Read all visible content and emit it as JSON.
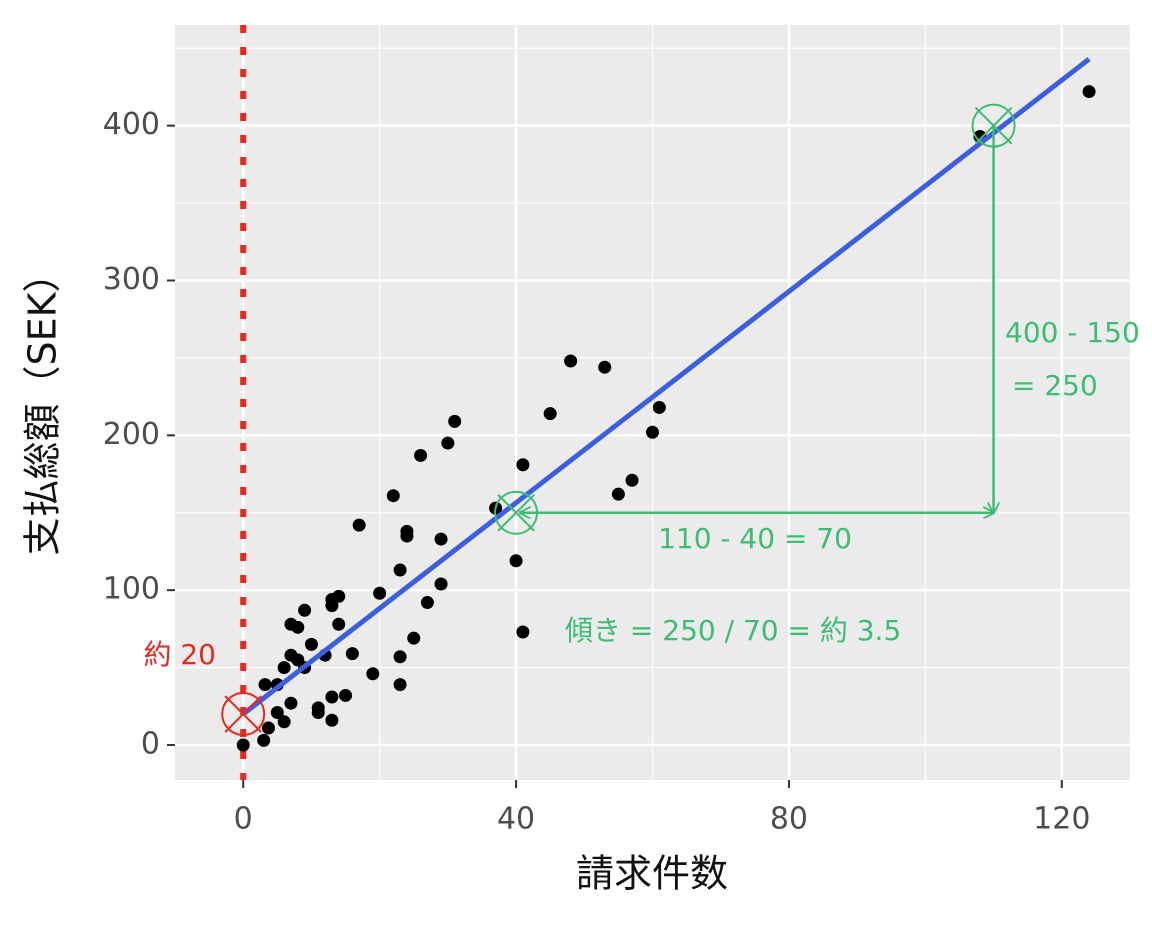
{
  "chart_data": {
    "type": "scatter",
    "x_label": "請求件数",
    "y_label": "支払総額（SEK）",
    "x": [
      0,
      3,
      3.7,
      3.2,
      5,
      5,
      6,
      7,
      6,
      7,
      8,
      7,
      9,
      8,
      10,
      9,
      11,
      11,
      12,
      13,
      13,
      15,
      13,
      13,
      14,
      14,
      16,
      17,
      19,
      20,
      22,
      23,
      23,
      23,
      24,
      24,
      25,
      27,
      26,
      29,
      29,
      30,
      31,
      37,
      40,
      41,
      41,
      45,
      48,
      53,
      55,
      57,
      60,
      61,
      108,
      124
    ],
    "values": [
      0,
      3,
      11,
      39,
      39,
      21,
      15,
      27,
      50,
      58,
      76,
      78,
      87,
      55,
      65,
      50,
      21,
      24,
      58,
      16,
      31,
      32,
      90,
      94,
      96,
      78,
      59,
      142,
      46,
      98,
      161,
      57,
      39,
      113,
      138,
      135,
      69,
      92,
      187,
      133,
      104,
      195,
      209,
      153,
      119,
      181,
      73,
      214,
      248,
      244,
      162,
      171,
      202,
      218,
      393,
      422
    ],
    "color": "#000000",
    "fit_line": {
      "x": [
        0,
        124
      ],
      "values": [
        20,
        443
      ],
      "color": "#3b5fe0"
    },
    "xlim": [
      -10,
      130
    ],
    "ylim": [
      -22.6,
      465
    ],
    "xticks": [
      0,
      40,
      80,
      120
    ],
    "yticks": [
      0,
      100,
      200,
      300,
      400
    ],
    "x_minor_ticks": [
      20,
      60,
      100
    ],
    "y_minor_ticks": [
      50,
      150,
      250,
      350,
      450
    ],
    "grid": true,
    "annotations": {
      "intercept": {
        "x": 0,
        "y": 20,
        "label": "約 20",
        "color": "#e8291c"
      },
      "point_a": {
        "x": 40,
        "y": 150
      },
      "point_b": {
        "x": 110,
        "y": 400
      },
      "run_label": "110 - 40 = 70",
      "rise_label_1": "400 - 150",
      "rise_label_2": "= 250",
      "slope_label": "傾き = 250 / 70 = 約 3.5",
      "color": "#3dbd74"
    }
  }
}
